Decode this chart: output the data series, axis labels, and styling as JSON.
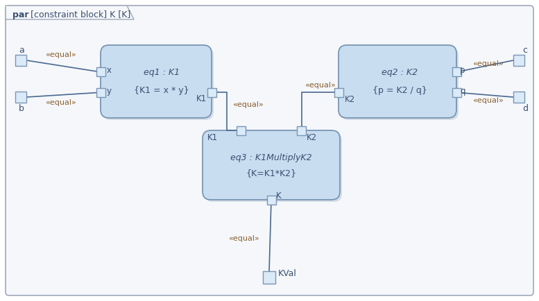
{
  "bg_color": "#ffffff",
  "outer_fill": "#f5f7fa",
  "outer_stroke": "#a0a8b8",
  "box_fill": "#c8ddf0",
  "box_stroke": "#7a96b4",
  "port_fill": "#daeaf8",
  "port_stroke": "#7a96b4",
  "shadow_color": "#b8c8d8",
  "line_color": "#4a6890",
  "text_color": "#3a5070",
  "equal_color": "#8a6030",
  "title_bold": "par",
  "title_normal": " [constraint block] K [K]",
  "eq1_line1": "eq1 : K1",
  "eq1_line2": "{K1 = x * y}",
  "eq2_line1": "eq2 : K2",
  "eq2_line2": "{p = K2 / q}",
  "eq3_line1": "eq3 : K1MultiplyK2",
  "eq3_line2": "{K=K1*K2}",
  "label_a": "a",
  "label_b": "b",
  "label_c": "c",
  "label_d": "d",
  "label_kval": "KVal",
  "label_x": "x",
  "label_y": "y",
  "label_k1": "K1",
  "label_k2_left": "K2",
  "label_k2_top": "K2",
  "label_p": "p",
  "label_q": "q",
  "label_k1_top": "K1",
  "label_k2_top2": "K2",
  "label_k": "K"
}
